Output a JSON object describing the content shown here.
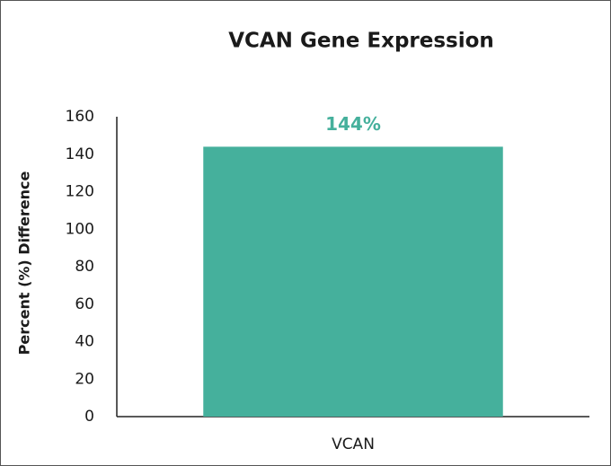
{
  "chart_data": {
    "type": "bar",
    "title": "VCAN Gene Expression",
    "y_label": "Percent (%) Difference",
    "categories": [
      "VCAN"
    ],
    "values": [
      144
    ],
    "value_labels": [
      "144%"
    ],
    "color": "#45b09c",
    "ylim": [
      0,
      160
    ],
    "yticks": [
      0,
      20,
      40,
      60,
      80,
      100,
      120,
      140,
      160
    ],
    "grid": false
  }
}
